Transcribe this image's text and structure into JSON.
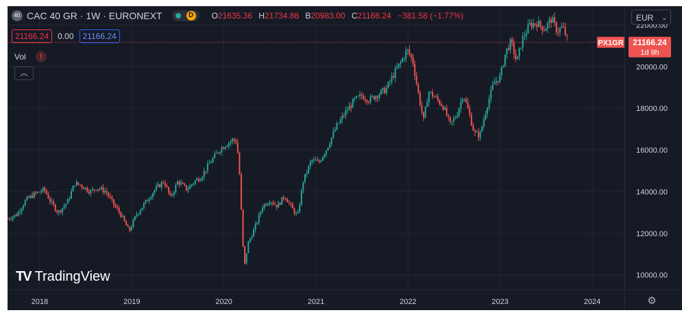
{
  "header": {
    "logo_text": "40",
    "title": "CAC 40 GR · 1W · EURONEXT",
    "status_letter": "D",
    "ohlc": {
      "o_label": "O",
      "o": "21635.36",
      "h_label": "H",
      "h": "21734.88",
      "l_label": "B",
      "l": "20983.00",
      "c_label": "C",
      "c": "21166.24",
      "change": "−381.58 (−1.77%)"
    },
    "bid": "21166.24",
    "spread": "0.00",
    "ask": "21166.24",
    "vol_label": "Vol",
    "vol_warning": "!",
    "currency": "EUR"
  },
  "price_tag": {
    "symbol": "PX1GR",
    "price": "21166.24",
    "countdown": "1d 9h"
  },
  "watermark": "TradingView",
  "colors": {
    "up": "#26a69a",
    "down": "#ef5350",
    "background": "#161a25",
    "grid": "#232632",
    "axis_text": "#d1d4dc"
  },
  "chart_data": {
    "type": "candlestick",
    "xlabel": "",
    "ylabel": "",
    "ylim": [
      9300,
      22900
    ],
    "xlim": [
      2017.65,
      2024.35
    ],
    "y_ticks": [
      10000,
      12000,
      14000,
      16000,
      18000,
      20000,
      22000
    ],
    "y_tick_labels": [
      "10000.00",
      "12000.00",
      "14000.00",
      "16000.00",
      "18000.00",
      "20000.00",
      "22000.00"
    ],
    "x_ticks": [
      2018,
      2019,
      2020,
      2021,
      2022,
      2023,
      2024
    ],
    "x_tick_labels": [
      "2018",
      "2019",
      "2020",
      "2021",
      "2022",
      "2023",
      "2024"
    ],
    "last_price": 21166.24,
    "grid": true,
    "close_path": [
      [
        2017.65,
        12700
      ],
      [
        2017.75,
        12900
      ],
      [
        2017.85,
        13600
      ],
      [
        2017.95,
        13900
      ],
      [
        2018.05,
        14100
      ],
      [
        2018.12,
        13500
      ],
      [
        2018.2,
        13000
      ],
      [
        2018.3,
        13500
      ],
      [
        2018.38,
        14400
      ],
      [
        2018.45,
        14300
      ],
      [
        2018.55,
        14000
      ],
      [
        2018.62,
        14200
      ],
      [
        2018.72,
        14000
      ],
      [
        2018.8,
        13400
      ],
      [
        2018.88,
        12900
      ],
      [
        2018.97,
        12100
      ],
      [
        2019.05,
        12900
      ],
      [
        2019.15,
        13500
      ],
      [
        2019.25,
        14100
      ],
      [
        2019.35,
        14500
      ],
      [
        2019.42,
        13700
      ],
      [
        2019.5,
        14500
      ],
      [
        2019.6,
        14100
      ],
      [
        2019.68,
        14500
      ],
      [
        2019.75,
        14700
      ],
      [
        2019.85,
        15400
      ],
      [
        2019.95,
        16000
      ],
      [
        2020.03,
        16300
      ],
      [
        2020.1,
        16500
      ],
      [
        2020.14,
        16400
      ],
      [
        2020.17,
        14800
      ],
      [
        2020.2,
        12000
      ],
      [
        2020.22,
        10300
      ],
      [
        2020.26,
        11500
      ],
      [
        2020.33,
        12200
      ],
      [
        2020.42,
        13300
      ],
      [
        2020.5,
        13600
      ],
      [
        2020.58,
        13300
      ],
      [
        2020.66,
        13800
      ],
      [
        2020.74,
        13200
      ],
      [
        2020.8,
        12800
      ],
      [
        2020.86,
        14500
      ],
      [
        2020.95,
        15500
      ],
      [
        2021.03,
        15400
      ],
      [
        2021.12,
        16100
      ],
      [
        2021.22,
        17100
      ],
      [
        2021.32,
        17800
      ],
      [
        2021.42,
        18400
      ],
      [
        2021.5,
        18600
      ],
      [
        2021.58,
        18400
      ],
      [
        2021.68,
        18700
      ],
      [
        2021.76,
        18900
      ],
      [
        2021.84,
        19600
      ],
      [
        2021.92,
        20200
      ],
      [
        2021.99,
        20800
      ],
      [
        2022.05,
        20300
      ],
      [
        2022.12,
        18500
      ],
      [
        2022.17,
        17400
      ],
      [
        2022.22,
        18800
      ],
      [
        2022.3,
        18500
      ],
      [
        2022.38,
        18100
      ],
      [
        2022.46,
        17200
      ],
      [
        2022.53,
        17700
      ],
      [
        2022.6,
        18700
      ],
      [
        2022.66,
        17800
      ],
      [
        2022.72,
        16800
      ],
      [
        2022.78,
        16700
      ],
      [
        2022.85,
        18000
      ],
      [
        2022.93,
        19200
      ],
      [
        2023.0,
        19500
      ],
      [
        2023.06,
        20700
      ],
      [
        2023.12,
        21200
      ],
      [
        2023.18,
        20200
      ],
      [
        2023.24,
        21300
      ],
      [
        2023.32,
        22000
      ],
      [
        2023.4,
        22100
      ],
      [
        2023.48,
        21800
      ],
      [
        2023.56,
        22300
      ],
      [
        2023.62,
        21700
      ],
      [
        2023.68,
        21900
      ],
      [
        2023.74,
        21166
      ]
    ],
    "annotations": [
      {
        "text": "PX1GR",
        "y": 21166.24
      },
      {
        "text": "21166.24",
        "y": 21166.24
      },
      {
        "text": "1d 9h",
        "y": 21166.24
      }
    ]
  }
}
